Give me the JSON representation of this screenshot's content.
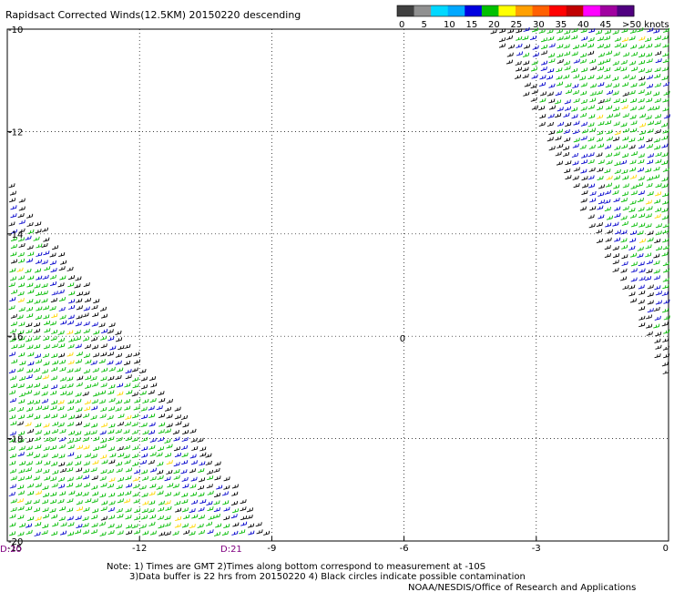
{
  "chart_data": {
    "type": "scatter",
    "title": "Rapidsact Corrected Winds(12.5KM) 20150220 descending",
    "x_ticks": [
      "-15",
      "-12",
      "-9",
      "-6",
      "-3",
      "0"
    ],
    "y_ticks": [
      "-10",
      "-12",
      "-14",
      "-16",
      "-18",
      "-20"
    ],
    "xlim": [
      -15,
      0
    ],
    "ylim": [
      -20,
      -10
    ],
    "grid": true,
    "legend": {
      "position": "top-right",
      "labels": [
        "0",
        "5",
        "10",
        "15",
        "20",
        "25",
        "30",
        "35",
        "40",
        "45",
        ">50 knots"
      ],
      "colors": [
        "#404040",
        "#909090",
        "#00d8ff",
        "#00a8ff",
        "#0000e0",
        "#00c000",
        "#ffff00",
        "#ffa000",
        "#ff6000",
        "#ff0000",
        "#c00000",
        "#ff00ff",
        "#a000a0",
        "#500080"
      ]
    },
    "time_labels": [
      {
        "label": "D:20",
        "x": -15
      },
      {
        "label": "D:21",
        "x": -10
      }
    ],
    "marker": {
      "label": "0",
      "x": -6.1,
      "y": -16.1
    },
    "swaths": [
      {
        "name": "left",
        "polygon": [
          [
            -15,
            -13.0
          ],
          [
            -9.0,
            -20.0
          ],
          [
            -15,
            -20.0
          ]
        ]
      },
      {
        "name": "right",
        "polygon": [
          [
            -4.1,
            -10.0
          ],
          [
            0,
            -10.0
          ],
          [
            0,
            -17.0
          ]
        ]
      }
    ],
    "wind_speed_classes": [
      {
        "speed_range": "0-5",
        "color": "#000000"
      },
      {
        "speed_range": "10-15",
        "color": "#0000cc"
      },
      {
        "speed_range": "15-20",
        "color": "#00bb00"
      },
      {
        "speed_range": "20-25",
        "color": "#ffd700"
      }
    ],
    "notes": [
      "Note: 1) Times are GMT 2)Times along bottom correspond to measurement at -10S",
      "3)Data buffer is 22 hrs from 20150220 4) Black circles indicate possible contamination",
      "NOAA/NESDIS/Office of Research and Applications"
    ]
  }
}
